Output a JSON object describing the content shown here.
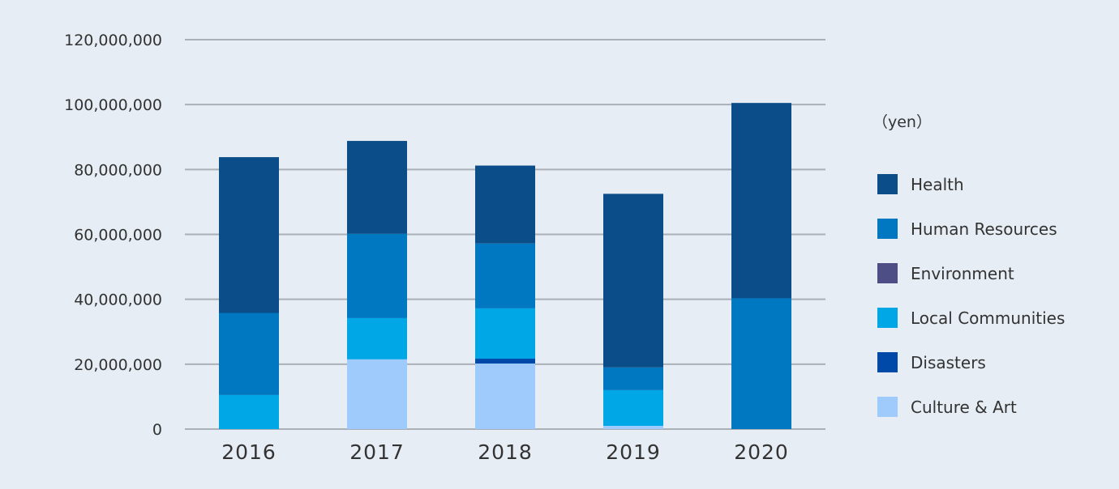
{
  "chart_data": {
    "type": "bar",
    "stacked": true,
    "categories": [
      "2016",
      "2017",
      "2018",
      "2019",
      "2020"
    ],
    "unit_label": "（yen）",
    "ylim": [
      0,
      120000000
    ],
    "yticks": [
      "0",
      "20,000,000",
      "40,000,000",
      "60,000,000",
      "80,000,000",
      "100,000,000",
      "120,000,000"
    ],
    "ytick_values": [
      0,
      20000000,
      40000000,
      60000000,
      80000000,
      100000000,
      120000000
    ],
    "grid": true,
    "legend_position": "right",
    "series": [
      {
        "name": "Culture & Art",
        "color": "#9ecbfb",
        "values": [
          0,
          21500000,
          20200000,
          1000000,
          0
        ]
      },
      {
        "name": "Disasters",
        "color": "#0049a8",
        "values": [
          0,
          0,
          1500000,
          0,
          0
        ]
      },
      {
        "name": "Local Communities",
        "color": "#00a7e6",
        "values": [
          10500000,
          12700000,
          15500000,
          11000000,
          0
        ]
      },
      {
        "name": "Environment",
        "color": "#4d4e86",
        "values": [
          0,
          0,
          0,
          0,
          0
        ]
      },
      {
        "name": "Human Resources",
        "color": "#0078c1",
        "values": [
          25300000,
          26000000,
          20000000,
          7000000,
          40300000
        ]
      },
      {
        "name": "Health",
        "color": "#0b4d88",
        "values": [
          48000000,
          28600000,
          24000000,
          53500000,
          60200000
        ]
      }
    ],
    "legend_order": [
      "Health",
      "Human Resources",
      "Environment",
      "Local Communities",
      "Disasters",
      "Culture & Art"
    ]
  }
}
